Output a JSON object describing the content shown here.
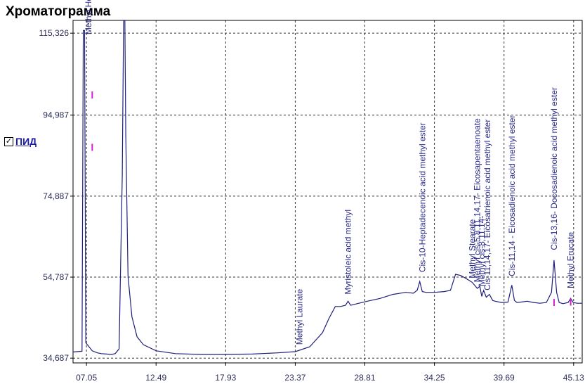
{
  "window": {
    "title": "Хроматограмма"
  },
  "legend": {
    "checkbox_mark": "✓",
    "label": "ПИД"
  },
  "colors": {
    "trace": "#1f1f7a",
    "peak_marker": "#d020d0",
    "grid": "#333333",
    "label": "#2a2a8a"
  },
  "chart_data": {
    "type": "line",
    "title": "Хроматограмма",
    "xlim": [
      6.0,
      45.8
    ],
    "ylim": [
      33.5,
      118.5
    ],
    "x_ticks": [
      "07.05",
      "12.49",
      "17.93",
      "23.37",
      "28.81",
      "34.25",
      "39.69",
      "45.13"
    ],
    "x_tick_values": [
      7.05,
      12.49,
      17.93,
      23.37,
      28.81,
      34.25,
      39.69,
      45.13
    ],
    "y_ticks": [
      "34,687",
      "54,787",
      "74,887",
      "94,987",
      "115,326"
    ],
    "y_tick_values": [
      34.687,
      54.787,
      74.887,
      94.987,
      115.326
    ],
    "grid": true,
    "series": [
      {
        "x": [
          6.0,
          6.7,
          6.8,
          6.9,
          7.0,
          7.5,
          7.9,
          8.2,
          8.6,
          9.0,
          9.3,
          9.6,
          9.85,
          9.95,
          10.05,
          10.12,
          10.3,
          10.6,
          11.0,
          11.5,
          12.5,
          14.0,
          16.0,
          17.93,
          20.0,
          22.0,
          23.37,
          24.5,
          25.5,
          26.0,
          26.5,
          26.9,
          27.3,
          27.5,
          27.7,
          28.2,
          29.0,
          30.0,
          31.0,
          32.0,
          32.6,
          32.9,
          33.1,
          33.3,
          33.6,
          34.25,
          35.0,
          35.5,
          35.9,
          36.3,
          36.7,
          37.2,
          37.6,
          37.8,
          37.95,
          38.1,
          38.3,
          38.55,
          38.8,
          39.0,
          39.5,
          40.0,
          40.3,
          40.5,
          40.7,
          41.0,
          41.5,
          42.0,
          42.5,
          43.0,
          43.4,
          43.6,
          43.8,
          44.0,
          44.3,
          44.7,
          44.9,
          45.1,
          45.4,
          45.8
        ],
        "y": [
          36.2,
          36.4,
          116.0,
          116.0,
          38.5,
          36.5,
          36.0,
          35.8,
          35.7,
          35.6,
          35.8,
          37.0,
          80.0,
          118.5,
          118.5,
          90.0,
          55.0,
          45.0,
          40.0,
          38.0,
          36.5,
          35.8,
          35.6,
          35.6,
          35.7,
          36.0,
          36.3,
          37.5,
          41.0,
          44.5,
          47.5,
          47.5,
          47.8,
          48.8,
          47.8,
          48.2,
          48.8,
          49.5,
          50.5,
          51.0,
          50.8,
          51.5,
          53.7,
          51.2,
          51.0,
          51.0,
          51.2,
          51.5,
          55.5,
          55.2,
          54.5,
          53.5,
          52.0,
          52.5,
          50.0,
          51.5,
          49.8,
          50.5,
          49.0,
          48.8,
          48.5,
          48.6,
          52.8,
          49.0,
          48.5,
          48.6,
          48.8,
          48.5,
          48.3,
          48.5,
          51.0,
          59.0,
          51.0,
          48.5,
          48.2,
          48.5,
          49.5,
          48.5,
          48.3,
          48.3
        ]
      }
    ],
    "peak_labels": [
      {
        "text": "Methyl Hexanoate",
        "x": 7.2,
        "y": 115.0
      },
      {
        "text": "Methyl Laurate",
        "x": 23.7,
        "y": 38.0
      },
      {
        "text": "Myristoleic acid methyl",
        "x": 27.5,
        "y": 50.5
      },
      {
        "text": "Cis-10-Heptadecenoic acid methyl  ester",
        "x": 33.3,
        "y": 56.0
      },
      {
        "text": "Methyl Stearate",
        "x": 37.2,
        "y": 54.5
      },
      {
        "text": "Methyl cis-5,8,11,14,17- Eicosapentaenoate",
        "x": 37.6,
        "y": 53.5
      },
      {
        "text": "Methyl cis-8,11,14-",
        "x": 37.95,
        "y": 52.5
      },
      {
        "text": "Cis-11,14,17- Eicosatrienoic acid methyl ester",
        "x": 38.4,
        "y": 51.5
      },
      {
        "text": "Cis-11,14 - Eicosadienoic acid methyl ester",
        "x": 40.3,
        "y": 55.0
      },
      {
        "text": "Cis-13,16- Docosadienoic acid methyl ester",
        "x": 43.6,
        "y": 61.5
      },
      {
        "text": "Methyl Erucate",
        "x": 44.9,
        "y": 52.0
      }
    ]
  }
}
